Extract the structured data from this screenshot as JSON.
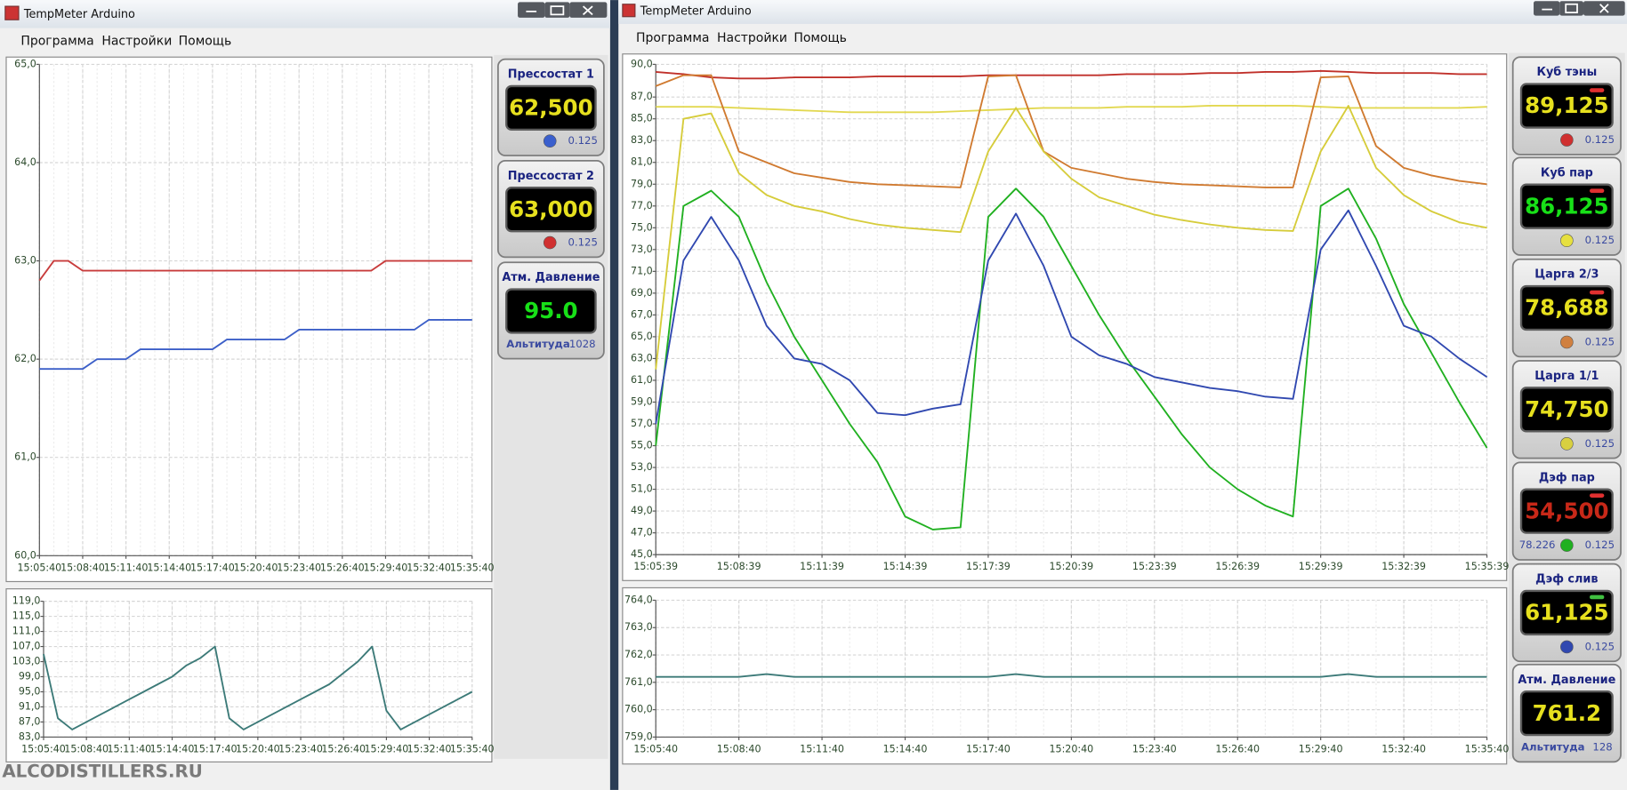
{
  "windows": [
    {
      "title": "TempMeter Arduino",
      "menu": [
        "Программа",
        "Настройки",
        "Помощь"
      ],
      "gauges": [
        {
          "title": "Прессостат 1",
          "value": "62,500",
          "color": "#e6e01e",
          "dot": "#3a5fcd",
          "reading": "0.125"
        },
        {
          "title": "Прессостат 2",
          "value": "63,000",
          "color": "#e6e01e",
          "dot": "#d03030",
          "reading": "0.125"
        },
        {
          "title": "Атм. Давление",
          "value": "95.0",
          "color": "#18e018",
          "altitude_label": "Альтитуда",
          "altitude": "1028"
        }
      ]
    },
    {
      "title": "TempMeter Arduino",
      "menu": [
        "Программа",
        "Настройки",
        "Помощь"
      ],
      "gauges": [
        {
          "title": "Куб тэны",
          "value": "89,125",
          "color": "#e6e01e",
          "indicator": "#e03030",
          "dot": "#d03030",
          "reading": "0.125"
        },
        {
          "title": "Куб пар",
          "value": "86,125",
          "color": "#18e018",
          "indicator": "#e03030",
          "dot": "#e6e040",
          "reading": "0.125"
        },
        {
          "title": "Царга 2/3",
          "value": "78,688",
          "color": "#e6e01e",
          "indicator": "#e03030",
          "dot": "#d08040",
          "reading": "0.125"
        },
        {
          "title": "Царга 1/1",
          "value": "74,750",
          "color": "#e6e01e",
          "dot": "#d8d040",
          "reading": "0.125"
        },
        {
          "title": "Дэф пар",
          "value": "54,500",
          "color": "#c82818",
          "indicator": "#e03030",
          "dot": "#20b020",
          "extra": "78.226",
          "reading": "0.125"
        },
        {
          "title": "Дэф слив",
          "value": "61,125",
          "color": "#e6e01e",
          "indicator": "#40c040",
          "dot": "#3048b0",
          "reading": "0.125"
        },
        {
          "title": "Атм. Давление",
          "value": "761.2",
          "color": "#e6e01e",
          "altitude_label": "Альтитуда",
          "altitude": "128"
        }
      ]
    }
  ],
  "chart_data": [
    {
      "type": "line",
      "grid": true,
      "x": [
        "15:05:40",
        null,
        null,
        "15:08:40",
        null,
        null,
        "15:11:40",
        null,
        null,
        "15:14:40",
        null,
        null,
        "15:17:40",
        null,
        null,
        "15:20:40",
        null,
        null,
        "15:23:40",
        null,
        null,
        "15:26:40",
        null,
        null,
        "15:29:40",
        null,
        null,
        "15:32:40",
        null,
        null,
        "15:35:40"
      ],
      "ylim": [
        60,
        65
      ],
      "yticks": [
        {
          "value": 60,
          "label": "60,0"
        },
        {
          "value": 61,
          "label": "61,0"
        },
        {
          "value": 62,
          "label": "62,0"
        },
        {
          "value": 63,
          "label": "63,0"
        },
        {
          "value": 64,
          "label": "64,0"
        },
        {
          "value": 65,
          "label": "65,0"
        }
      ],
      "series": [
        {
          "color": "#c83c3c",
          "values": [
            62.8,
            63.0,
            63.0,
            62.9,
            62.9,
            62.9,
            62.9,
            62.9,
            62.9,
            62.9,
            62.9,
            62.9,
            62.9,
            62.9,
            62.9,
            62.9,
            62.9,
            62.9,
            62.9,
            62.9,
            62.9,
            62.9,
            62.9,
            62.9,
            63.0,
            63.0,
            63.0,
            63.0,
            63.0,
            63.0,
            63.0
          ]
        },
        {
          "color": "#3c5fc8",
          "values": [
            61.9,
            61.9,
            61.9,
            61.9,
            62.0,
            62.0,
            62.0,
            62.1,
            62.1,
            62.1,
            62.1,
            62.1,
            62.1,
            62.2,
            62.2,
            62.2,
            62.2,
            62.2,
            62.3,
            62.3,
            62.3,
            62.3,
            62.3,
            62.3,
            62.3,
            62.3,
            62.3,
            62.4,
            62.4,
            62.4,
            62.4
          ]
        }
      ]
    },
    {
      "type": "line",
      "grid": true,
      "x": [
        "15:05:40",
        null,
        null,
        "15:08:40",
        null,
        null,
        "15:11:40",
        null,
        null,
        "15:14:40",
        null,
        null,
        "15:17:40",
        null,
        null,
        "15:20:40",
        null,
        null,
        "15:23:40",
        null,
        null,
        "15:26:40",
        null,
        null,
        "15:29:40",
        null,
        null,
        "15:32:40",
        null,
        null,
        "15:35:40"
      ],
      "ylim": [
        83,
        119
      ],
      "yticks": [
        {
          "value": 83,
          "label": "83,0"
        },
        {
          "value": 87,
          "label": "87,0"
        },
        {
          "value": 91,
          "label": "91,0"
        },
        {
          "value": 95,
          "label": "95,0"
        },
        {
          "value": 99,
          "label": "99,0"
        },
        {
          "value": 103,
          "label": "103,0"
        },
        {
          "value": 107,
          "label": "107,0"
        },
        {
          "value": 111,
          "label": "111,0"
        },
        {
          "value": 115,
          "label": "115,0"
        },
        {
          "value": 119,
          "label": "119,0"
        }
      ],
      "series": [
        {
          "color": "#3c7a78",
          "values": [
            105,
            88,
            85,
            87,
            89,
            91,
            93,
            95,
            97,
            99,
            102,
            104,
            107,
            88,
            85,
            87,
            89,
            91,
            93,
            95,
            97,
            100,
            103,
            107,
            90,
            85,
            87,
            89,
            91,
            93,
            95
          ]
        }
      ]
    },
    {
      "type": "line",
      "grid": true,
      "x": [
        "15:05:39",
        null,
        null,
        "15:08:39",
        null,
        null,
        "15:11:39",
        null,
        null,
        "15:14:39",
        null,
        null,
        "15:17:39",
        null,
        null,
        "15:20:39",
        null,
        null,
        "15:23:39",
        null,
        null,
        "15:26:39",
        null,
        null,
        "15:29:39",
        null,
        null,
        "15:32:39",
        null,
        null,
        "15:35:39"
      ],
      "ylim": [
        45,
        90
      ],
      "yticks": [
        {
          "value": 45,
          "label": "45,0"
        },
        {
          "value": 47,
          "label": "47,0"
        },
        {
          "value": 49,
          "label": "49,0"
        },
        {
          "value": 51,
          "label": "51,0"
        },
        {
          "value": 53,
          "label": "53,0"
        },
        {
          "value": 55,
          "label": "55,0"
        },
        {
          "value": 57,
          "label": "57,0"
        },
        {
          "value": 59,
          "label": "59,0"
        },
        {
          "value": 61,
          "label": "61,0"
        },
        {
          "value": 63,
          "label": "63,0"
        },
        {
          "value": 65,
          "label": "65,0"
        },
        {
          "value": 67,
          "label": "67,0"
        },
        {
          "value": 69,
          "label": "69,0"
        },
        {
          "value": 71,
          "label": "71,0"
        },
        {
          "value": 73,
          "label": "73,0"
        },
        {
          "value": 75,
          "label": "75,0"
        },
        {
          "value": 77,
          "label": "77,0"
        },
        {
          "value": 79,
          "label": "79,0"
        },
        {
          "value": 81,
          "label": "81,0"
        },
        {
          "value": 83,
          "label": "83,0"
        },
        {
          "value": 85,
          "label": "85,0"
        },
        {
          "value": 87,
          "label": "87,0"
        },
        {
          "value": 90,
          "label": "90,0"
        }
      ],
      "series": [
        {
          "color": "#c0302a",
          "values": [
            89.3,
            89.1,
            88.8,
            88.7,
            88.7,
            88.8,
            88.8,
            88.8,
            88.9,
            88.9,
            88.9,
            88.9,
            89.0,
            89.0,
            89.0,
            89.0,
            89.0,
            89.1,
            89.1,
            89.1,
            89.2,
            89.2,
            89.3,
            89.3,
            89.4,
            89.3,
            89.2,
            89.2,
            89.2,
            89.1,
            89.1
          ]
        },
        {
          "color": "#e2d850",
          "values": [
            86.1,
            86.1,
            86.1,
            86.0,
            85.9,
            85.8,
            85.7,
            85.6,
            85.6,
            85.6,
            85.6,
            85.7,
            85.8,
            85.9,
            86.0,
            86.0,
            86.0,
            86.1,
            86.1,
            86.1,
            86.2,
            86.2,
            86.2,
            86.2,
            86.1,
            86.0,
            86.0,
            86.0,
            86.0,
            86.0,
            86.1
          ]
        },
        {
          "color": "#d07a30",
          "values": [
            88,
            89,
            89,
            82,
            81,
            80,
            79.6,
            79.2,
            79,
            78.9,
            78.8,
            78.7,
            88.9,
            89,
            82,
            80.5,
            80,
            79.5,
            79.2,
            79,
            78.9,
            78.8,
            78.7,
            78.7,
            88.8,
            88.9,
            82.5,
            80.5,
            79.8,
            79.3,
            79.0
          ]
        },
        {
          "color": "#d6cc3a",
          "values": [
            62,
            85,
            85.5,
            80,
            78,
            77,
            76.5,
            75.8,
            75.3,
            75,
            74.8,
            74.6,
            82,
            86,
            82,
            79.5,
            77.8,
            77,
            76.2,
            75.7,
            75.3,
            75,
            74.8,
            74.7,
            82,
            86.2,
            80.5,
            78,
            76.5,
            75.5,
            75.0
          ]
        },
        {
          "color": "#20b020",
          "values": [
            55,
            77,
            78.4,
            76,
            70,
            65,
            61,
            57,
            53.5,
            48.5,
            47.3,
            47.5,
            76,
            78.6,
            76,
            71.5,
            67,
            63,
            59.5,
            56,
            53,
            51,
            49.5,
            48.5,
            77,
            78.6,
            74,
            68,
            63.5,
            59,
            54.8
          ]
        },
        {
          "color": "#3048b0",
          "values": [
            57,
            72,
            76,
            72,
            66,
            63,
            62.5,
            61,
            58,
            57.8,
            58.4,
            58.8,
            72,
            76.3,
            71.5,
            65,
            63.3,
            62.5,
            61.3,
            60.8,
            60.3,
            60,
            59.5,
            59.3,
            73,
            76.6,
            71.5,
            66,
            65,
            63,
            61.3
          ]
        }
      ]
    },
    {
      "type": "line",
      "grid": true,
      "x": [
        "15:05:40",
        null,
        null,
        "15:08:40",
        null,
        null,
        "15:11:40",
        null,
        null,
        "15:14:40",
        null,
        null,
        "15:17:40",
        null,
        null,
        "15:20:40",
        null,
        null,
        "15:23:40",
        null,
        null,
        "15:26:40",
        null,
        null,
        "15:29:40",
        null,
        null,
        "15:32:40",
        null,
        null,
        "15:35:40"
      ],
      "ylim": [
        759,
        764
      ],
      "yticks": [
        {
          "value": 759,
          "label": "759,0"
        },
        {
          "value": 760,
          "label": "760,0"
        },
        {
          "value": 761,
          "label": "761,0"
        },
        {
          "value": 762,
          "label": "762,0"
        },
        {
          "value": 763,
          "label": "763,0"
        },
        {
          "value": 764,
          "label": "764,0"
        }
      ],
      "series": [
        {
          "color": "#3c7a78",
          "values": [
            761.2,
            761.2,
            761.2,
            761.2,
            761.3,
            761.2,
            761.2,
            761.2,
            761.2,
            761.2,
            761.2,
            761.2,
            761.2,
            761.3,
            761.2,
            761.2,
            761.2,
            761.2,
            761.2,
            761.2,
            761.2,
            761.2,
            761.2,
            761.2,
            761.2,
            761.3,
            761.2,
            761.2,
            761.2,
            761.2,
            761.2
          ]
        }
      ]
    }
  ],
  "watermark": "ALCODISTILLERS.RU"
}
